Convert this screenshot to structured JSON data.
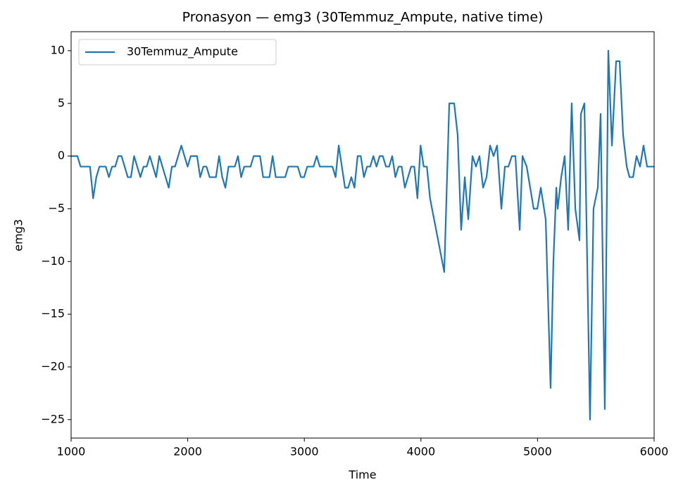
{
  "chart_data": {
    "type": "line",
    "title": "Pronasyon — emg3 (30Temmuz_Ampute, native time)",
    "xlabel": "Time",
    "ylabel": "emg3",
    "xlim": [
      1000,
      6000
    ],
    "ylim": [
      -26.75,
      11.8
    ],
    "xticks": [
      1000,
      2000,
      3000,
      4000,
      5000,
      6000
    ],
    "yticks": [
      {
        "value": -25,
        "label": "−25"
      },
      {
        "value": -20,
        "label": "−20"
      },
      {
        "value": -15,
        "label": "−15"
      },
      {
        "value": -10,
        "label": "−10"
      },
      {
        "value": -5,
        "label": "−5"
      },
      0,
      5,
      10
    ],
    "grid": false,
    "legend": "upper left",
    "x": [
      1000,
      1027,
      1054,
      1081,
      1108,
      1135,
      1162,
      1189,
      1216,
      1243,
      1270,
      1297,
      1324,
      1351,
      1378,
      1405,
      1432,
      1459,
      1486,
      1513,
      1540,
      1567,
      1594,
      1621,
      1648,
      1675,
      1702,
      1729,
      1756,
      1783,
      1810,
      1837,
      1864,
      1891,
      1918,
      1945,
      1972,
      1999,
      2026,
      2053,
      2080,
      2107,
      2134,
      2161,
      2188,
      2215,
      2242,
      2269,
      2296,
      2323,
      2350,
      2377,
      2404,
      2431,
      2458,
      2485,
      2512,
      2539,
      2566,
      2593,
      2620,
      2647,
      2674,
      2701,
      2728,
      2755,
      2782,
      2809,
      2836,
      2863,
      2890,
      2917,
      2944,
      2971,
      2998,
      3025,
      3052,
      3079,
      3106,
      3133,
      3160,
      3187,
      3214,
      3241,
      3268,
      3295,
      3322,
      3349,
      3376,
      3403,
      3430,
      3457,
      3484,
      3511,
      3538,
      3565,
      3592,
      3619,
      3646,
      3673,
      3700,
      3727,
      3754,
      3781,
      3808,
      3835,
      3862,
      3889,
      3916,
      3943,
      3970,
      3997,
      4024,
      4051,
      4078,
      4200,
      4243,
      4285,
      4315,
      4345,
      4376,
      4406,
      4442,
      4472,
      4502,
      4533,
      4563,
      4593,
      4623,
      4653,
      4690,
      4720,
      4750,
      4780,
      4810,
      4847,
      4871,
      4907,
      4937,
      4967,
      4998,
      5028,
      5070,
      5112,
      5136,
      5161,
      5173,
      5203,
      5233,
      5263,
      5293,
      5324,
      5360,
      5372,
      5402,
      5450,
      5480,
      5517,
      5541,
      5577,
      5607,
      5638,
      5674,
      5704,
      5734,
      5765,
      5789,
      5819,
      5849,
      5879,
      5909,
      5940,
      6000
    ],
    "series": [
      {
        "name": "30Temmuz_Ampute",
        "color": "#1f77b4",
        "values": [
          0,
          0,
          0,
          -1,
          -1,
          -1,
          -1,
          -4,
          -2,
          -1,
          -1,
          -1,
          -2,
          -1,
          -1,
          0,
          0,
          -1,
          -2,
          -2,
          0,
          -1,
          -2,
          -1,
          -1,
          0,
          -1,
          -2,
          0,
          -1,
          -2,
          -3,
          -1,
          -1,
          0,
          1,
          0,
          -1,
          0,
          0,
          0,
          -2,
          -1,
          -1,
          -2,
          -2,
          -2,
          0,
          -2,
          -3,
          -1,
          -1,
          -1,
          0,
          -2,
          -1,
          -1,
          -1,
          0,
          0,
          0,
          -2,
          -2,
          -2,
          0,
          -2,
          -2,
          -2,
          -2,
          -1,
          -1,
          -1,
          -1,
          -2,
          -2,
          -1,
          -1,
          -1,
          0,
          -1,
          -1,
          -1,
          -1,
          -1,
          -2,
          1,
          -1,
          -3,
          -3,
          -2,
          -3,
          0,
          0,
          -2,
          -1,
          -1,
          0,
          -1,
          0,
          0,
          -1,
          -1,
          0,
          -2,
          -1,
          -1,
          -3,
          -2,
          -1,
          -1,
          -4,
          1,
          -1,
          -1,
          -4,
          -11,
          5,
          5,
          2,
          -7,
          -2,
          -6,
          0,
          -1,
          0,
          -3,
          -2,
          1,
          0,
          1,
          -5,
          -1,
          -1,
          0,
          0,
          -7,
          0,
          -1,
          -3,
          -5,
          -5,
          -3,
          -6,
          -22,
          -10,
          -3,
          -5,
          -2,
          0,
          -7,
          5,
          -5,
          -8,
          4,
          5,
          -25,
          -5,
          -3,
          4,
          -24,
          10,
          1,
          9,
          9,
          2,
          -1,
          -2,
          -2,
          0,
          -1,
          1,
          -1,
          -1
        ]
      }
    ]
  }
}
